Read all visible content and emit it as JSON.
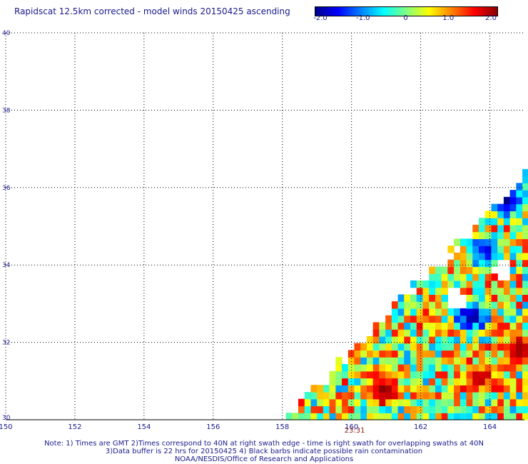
{
  "title": "Rapidscat 12.5km corrected - model winds 20150425 ascending",
  "colorbar": {
    "colors": [
      "#00008b",
      "#0000ff",
      "#0080ff",
      "#00ffff",
      "#80ff80",
      "#ffff00",
      "#ff8000",
      "#ff0000",
      "#8b0000"
    ],
    "ticks": [
      "-2.0",
      "-1.0",
      "0",
      "1.0",
      "2.0"
    ]
  },
  "chart_data": {
    "type": "heatmap",
    "title": "Rapidscat 12.5km corrected - model winds 20150425 ascending",
    "xlim": [
      150,
      165
    ],
    "ylim": [
      30,
      40
    ],
    "clim": [
      -2.0,
      2.0
    ],
    "grid": true,
    "x_ticks": [
      "150",
      "152",
      "154",
      "156",
      "158",
      "160",
      "162",
      "164"
    ],
    "y_ticks": [
      "30",
      "32",
      "34",
      "36",
      "38",
      "40"
    ],
    "swath": {
      "lower_edge": {
        "lon_at_lat30": 158.1,
        "lat_at_lon165": 36.3
      },
      "cell_deg": 0.18,
      "value_range": [
        -2.0,
        2.0
      ],
      "hot_zones": [
        {
          "lon": 160.8,
          "lat": 30.7,
          "value": 2.0
        },
        {
          "lon": 164.8,
          "lat": 31.7,
          "value": 2.0
        },
        {
          "lon": 163.6,
          "lat": 31.0,
          "value": 1.8
        }
      ],
      "cold_zones": [
        {
          "lon": 163.4,
          "lat": 32.6,
          "value": -2.0
        },
        {
          "lon": 164.4,
          "lat": 35.6,
          "value": -2.0
        },
        {
          "lon": 163.8,
          "lat": 34.3,
          "value": -1.6
        }
      ],
      "gaps": [
        {
          "lon": 162.5,
          "lat": 34.3
        },
        {
          "lon": 162.9,
          "lat": 33.0
        },
        {
          "lon": 164.3,
          "lat": 33.8
        }
      ]
    },
    "annotations": [
      {
        "text": "23:31",
        "lon": 160.0,
        "lat": 29.6
      }
    ]
  },
  "notes": [
    "Note: 1) Times are GMT 2)Times correspond to 40N at right swath edge - time is right swath for overlapping swaths at 40N",
    "3)Data buffer is 22 hrs for 20150425 4) Black barbs indicate possible rain contamination",
    "NOAA/NESDIS/Office of Research and Applications"
  ]
}
